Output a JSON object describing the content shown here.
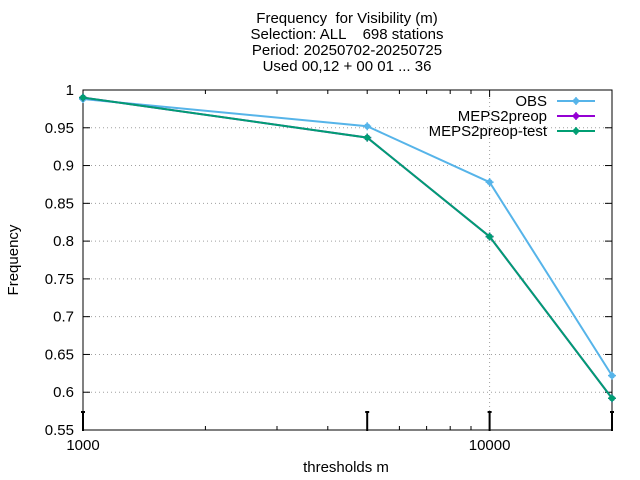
{
  "chart_data": {
    "type": "line",
    "title_lines": [
      "Frequency  for Visibility (m)",
      "Selection: ALL    698 stations",
      "Period: 20250702-20250725",
      "Used 00,12 + 00 01 ... 36"
    ],
    "xlabel": "thresholds m",
    "ylabel": "Frequency",
    "xscale": "log",
    "xlim": [
      1000,
      20000
    ],
    "ylim": [
      0.55,
      1.0
    ],
    "grid": true,
    "legend_position": "top-right",
    "x_tick_labels": [
      {
        "value": 1000,
        "label": "1000"
      },
      {
        "value": 10000,
        "label": "10000"
      }
    ],
    "y_ticks": [
      0.55,
      0.6,
      0.65,
      0.7,
      0.75,
      0.8,
      0.85,
      0.9,
      0.95,
      1.0
    ],
    "y_tick_labels": [
      "0.55",
      "0.6",
      "0.65",
      "0.7",
      "0.75",
      "0.8",
      "0.85",
      "0.9",
      "0.95",
      "1"
    ],
    "x": [
      1000,
      5000,
      10000,
      20000
    ],
    "series": [
      {
        "name": "OBS",
        "color": "#56b4e9",
        "values": [
          0.988,
          0.952,
          0.878,
          0.622
        ]
      },
      {
        "name": "MEPS2preop",
        "color": "#9400d3",
        "values": [
          0.99,
          0.937,
          0.806,
          0.592
        ]
      },
      {
        "name": "MEPS2preop-test",
        "color": "#009e73",
        "values": [
          0.99,
          0.937,
          0.806,
          0.592
        ]
      }
    ]
  }
}
